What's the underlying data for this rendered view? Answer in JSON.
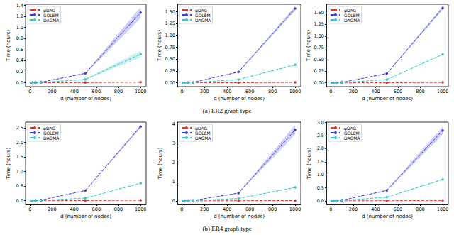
{
  "chart_data": [
    {
      "type": "line",
      "xlabel": "d (number of nodes)",
      "ylabel": "Time (hours)",
      "legend": "upper left",
      "grid": false,
      "x": [
        10,
        20,
        50,
        100,
        500,
        1000
      ],
      "xlim": [
        -40,
        1050
      ],
      "xticks": [
        0,
        200,
        400,
        600,
        800,
        1000
      ],
      "ylim": [
        -0.07,
        1.42
      ],
      "yticks": [
        {
          "value": 0,
          "label": "0.0"
        },
        0.2,
        0.4,
        0.6,
        0.8,
        {
          "value": 1,
          "label": "1.0"
        },
        1.2,
        1.4
      ],
      "series": [
        {
          "name": "ψDAG",
          "color": "#e6302a",
          "marker": "circle",
          "line_style": "dashed",
          "values": [
            0,
            0,
            0,
            0,
            0.003,
            0.01
          ]
        },
        {
          "name": "GOLEM",
          "color": "#3a3adf",
          "marker": "circle",
          "line_style": "dashed",
          "values": [
            0,
            0,
            0.005,
            0.01,
            0.17,
            1.27
          ],
          "std": [
            0,
            0,
            0,
            0,
            0.01,
            0.1
          ]
        },
        {
          "name": "DAGMA",
          "color": "#2fc7d0",
          "marker": "circle",
          "line_style": "dashed",
          "values": [
            0,
            0,
            0,
            0.005,
            0.06,
            0.52
          ],
          "std": [
            0,
            0,
            0,
            0,
            0.01,
            0.06
          ]
        }
      ]
    },
    {
      "type": "line",
      "xlabel": "d (number of nodes)",
      "ylabel": "Time (hours)",
      "legend": "upper left",
      "grid": false,
      "x": [
        10,
        20,
        50,
        100,
        500,
        1000
      ],
      "xlim": [
        -40,
        1050
      ],
      "xticks": [
        0,
        200,
        400,
        600,
        800,
        1000
      ],
      "ylim": [
        -0.08,
        1.66
      ],
      "yticks": [
        {
          "value": 0,
          "label": "0.00"
        },
        0.25,
        {
          "value": 0.5,
          "label": "0.50"
        },
        0.75,
        {
          "value": 1,
          "label": "1.00"
        },
        1.25,
        {
          "value": 1.5,
          "label": "1.50"
        }
      ],
      "series": [
        {
          "name": "ψDAG",
          "color": "#e6302a",
          "marker": "circle",
          "line_style": "dashed",
          "values": [
            0,
            0,
            0,
            0,
            0.003,
            0.01
          ]
        },
        {
          "name": "GOLEM",
          "color": "#3a3adf",
          "marker": "circle",
          "line_style": "dashed",
          "values": [
            0,
            0,
            0.005,
            0.01,
            0.23,
            1.57
          ],
          "std": [
            0,
            0,
            0,
            0,
            0.01,
            0.05
          ]
        },
        {
          "name": "DAGMA",
          "color": "#2fc7d0",
          "marker": "circle",
          "line_style": "dashed",
          "values": [
            0,
            0,
            0,
            0.005,
            0.07,
            0.38
          ],
          "std": [
            0,
            0,
            0,
            0,
            0.005,
            0.01
          ]
        }
      ]
    },
    {
      "type": "line",
      "xlabel": "d (number of nodes)",
      "ylabel": "Time (hours)",
      "legend": "upper left",
      "grid": false,
      "x": [
        10,
        20,
        50,
        100,
        500,
        1000
      ],
      "xlim": [
        -40,
        1050
      ],
      "xticks": [
        0,
        200,
        400,
        600,
        800,
        1000
      ],
      "ylim": [
        -0.08,
        1.68
      ],
      "yticks": [
        {
          "value": 0,
          "label": "0.00"
        },
        0.25,
        {
          "value": 0.5,
          "label": "0.50"
        },
        0.75,
        {
          "value": 1,
          "label": "1.00"
        },
        1.25,
        {
          "value": 1.5,
          "label": "1.50"
        }
      ],
      "series": [
        {
          "name": "ψDAG",
          "color": "#e6302a",
          "marker": "circle",
          "line_style": "dashed",
          "values": [
            0,
            0,
            0,
            0,
            0.003,
            0.01
          ]
        },
        {
          "name": "GOLEM",
          "color": "#3a3adf",
          "marker": "circle",
          "line_style": "dashed",
          "values": [
            0,
            0,
            0.005,
            0.01,
            0.2,
            1.6
          ],
          "std": [
            0,
            0,
            0,
            0,
            0.01,
            0.04
          ]
        },
        {
          "name": "DAGMA",
          "color": "#2fc7d0",
          "marker": "circle",
          "line_style": "dashed",
          "values": [
            0,
            0,
            0,
            0.005,
            0.07,
            0.61
          ],
          "std": [
            0,
            0,
            0,
            0,
            0.005,
            0.01
          ]
        }
      ]
    },
    {
      "type": "line",
      "xlabel": "d (number of nodes)",
      "ylabel": "Time (hours)",
      "legend": "upper left",
      "grid": false,
      "x": [
        10,
        20,
        50,
        100,
        500,
        1000
      ],
      "xlim": [
        -40,
        1050
      ],
      "xticks": [
        0,
        200,
        400,
        600,
        800,
        1000
      ],
      "ylim": [
        -0.13,
        2.7
      ],
      "yticks": [
        {
          "value": 0,
          "label": "0.0"
        },
        0.5,
        {
          "value": 1,
          "label": "1.0"
        },
        1.5,
        {
          "value": 2,
          "label": "2.0"
        },
        2.5
      ],
      "series": [
        {
          "name": "ψDAG",
          "color": "#e6302a",
          "marker": "circle",
          "line_style": "dashed",
          "values": [
            0,
            0,
            0,
            0,
            0.005,
            0.015
          ]
        },
        {
          "name": "GOLEM",
          "color": "#3a3adf",
          "marker": "circle",
          "line_style": "dashed",
          "values": [
            0,
            0,
            0.01,
            0.02,
            0.35,
            2.55
          ],
          "std": [
            0,
            0,
            0,
            0,
            0.01,
            0.05
          ]
        },
        {
          "name": "DAGMA",
          "color": "#2fc7d0",
          "marker": "circle",
          "line_style": "dashed",
          "values": [
            0,
            0,
            0,
            0.01,
            0.09,
            0.6
          ],
          "std": [
            0,
            0,
            0,
            0,
            0.005,
            0.01
          ]
        }
      ]
    },
    {
      "type": "line",
      "xlabel": "d (number of nodes)",
      "ylabel": "Time (hours)",
      "legend": "upper left",
      "grid": false,
      "x": [
        10,
        20,
        50,
        100,
        500,
        1000
      ],
      "xlim": [
        -40,
        1050
      ],
      "xticks": [
        0,
        200,
        400,
        600,
        800,
        1000
      ],
      "ylim": [
        -0.19,
        4.1
      ],
      "yticks": [
        0,
        1,
        2,
        3,
        4
      ],
      "series": [
        {
          "name": "ψDAG",
          "color": "#e6302a",
          "marker": "circle",
          "line_style": "dashed",
          "values": [
            0,
            0,
            0,
            0,
            0.005,
            0.015
          ]
        },
        {
          "name": "GOLEM",
          "color": "#3a3adf",
          "marker": "circle",
          "line_style": "dashed",
          "values": [
            0,
            0,
            0.01,
            0.02,
            0.4,
            3.7
          ],
          "std": [
            0,
            0,
            0,
            0,
            0.02,
            0.25
          ]
        },
        {
          "name": "DAGMA",
          "color": "#2fc7d0",
          "marker": "circle",
          "line_style": "dashed",
          "values": [
            0,
            0,
            0.005,
            0.01,
            0.12,
            0.7
          ],
          "std": [
            0,
            0,
            0,
            0,
            0.005,
            0.02
          ]
        }
      ]
    },
    {
      "type": "line",
      "xlabel": "d (number of nodes)",
      "ylabel": "Time (hours)",
      "legend": "upper left",
      "grid": false,
      "x": [
        10,
        20,
        50,
        100,
        500,
        1000
      ],
      "xlim": [
        -40,
        1050
      ],
      "xticks": [
        0,
        200,
        400,
        600,
        800,
        1000
      ],
      "ylim": [
        -0.14,
        3.02
      ],
      "yticks": [
        {
          "value": 0,
          "label": "0.0"
        },
        0.5,
        {
          "value": 1,
          "label": "1.0"
        },
        1.5,
        {
          "value": 2,
          "label": "2.0"
        },
        2.5,
        {
          "value": 3,
          "label": "3.0"
        }
      ],
      "series": [
        {
          "name": "ψDAG",
          "color": "#e6302a",
          "marker": "circle",
          "line_style": "dashed",
          "values": [
            0,
            0,
            0,
            0,
            0.005,
            0.015
          ]
        },
        {
          "name": "GOLEM",
          "color": "#3a3adf",
          "marker": "circle",
          "line_style": "dashed",
          "values": [
            0,
            0,
            0.01,
            0.02,
            0.4,
            2.7
          ],
          "std": [
            0,
            0,
            0,
            0,
            0.02,
            0.15
          ]
        },
        {
          "name": "DAGMA",
          "color": "#2fc7d0",
          "marker": "circle",
          "line_style": "dashed",
          "values": [
            0,
            0,
            0.005,
            0.01,
            0.14,
            0.82
          ],
          "std": [
            0,
            0,
            0,
            0,
            0.005,
            0.02
          ]
        }
      ]
    }
  ],
  "captions": [
    "(a) ER2 graph type",
    "(b) ER4 graph type"
  ]
}
